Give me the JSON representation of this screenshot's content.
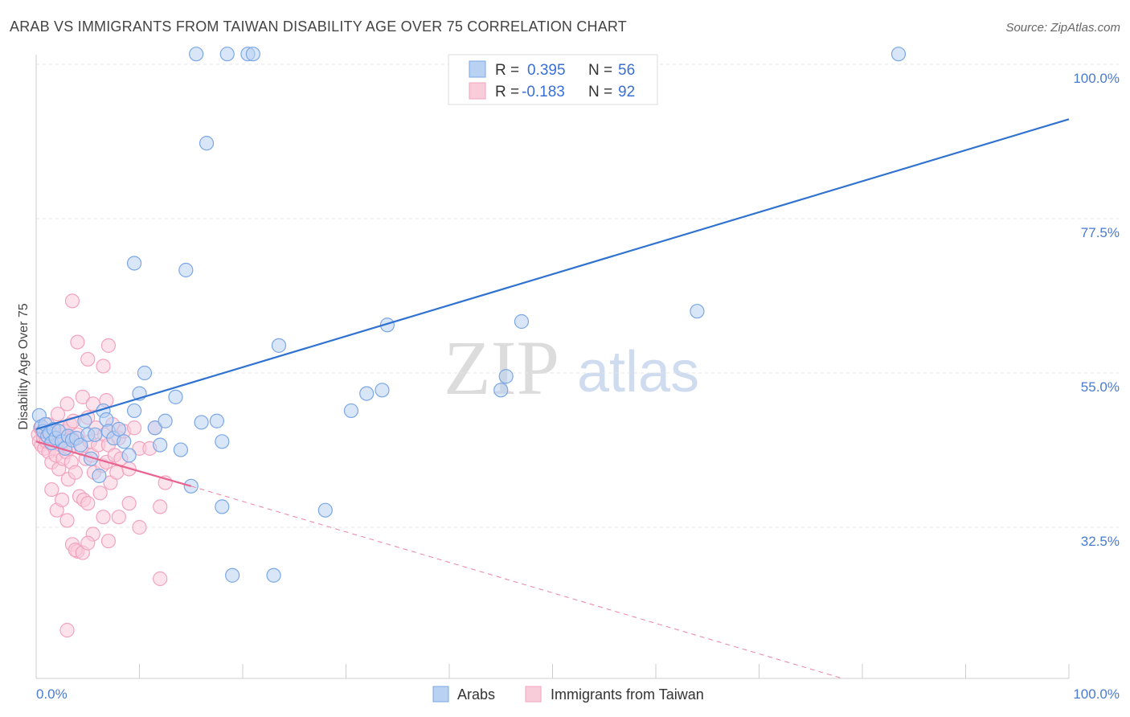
{
  "chart_data": {
    "type": "scatter",
    "title": "ARAB VS IMMIGRANTS FROM TAIWAN DISABILITY AGE OVER 75 CORRELATION CHART",
    "source": "Source: ZipAtlas.com",
    "ylabel": "Disability Age Over 75",
    "xlim": [
      0,
      100
    ],
    "ylim": [
      10,
      102
    ],
    "x_tick_labels": [
      "0.0%",
      "100.0%"
    ],
    "y_ticks": [
      {
        "value": 100,
        "label": "100.0%"
      },
      {
        "value": 77.5,
        "label": "77.5%"
      },
      {
        "value": 55,
        "label": "55.0%"
      },
      {
        "value": 32.5,
        "label": "32.5%"
      }
    ],
    "watermark": {
      "zip": "ZIP",
      "atlas": "atlas"
    },
    "legend": [
      {
        "r_label": "R =",
        "r_value": "0.395",
        "n_label": "N =",
        "n_value": "56"
      },
      {
        "r_label": "R =",
        "r_value": "-0.183",
        "n_label": "N =",
        "n_value": "92"
      }
    ],
    "series": [
      {
        "name": "Arabs",
        "color": "#7aa7e6",
        "fill": "#b9d1f3",
        "line_color": "#2f72d0",
        "trend": {
          "x0": 0,
          "y0": 46.8,
          "x1": 100,
          "y1": 92.0
        },
        "points": [
          [
            0.3,
            48.8
          ],
          [
            0.5,
            47.2
          ],
          [
            0.7,
            46.5
          ],
          [
            0.9,
            47.5
          ],
          [
            1.1,
            45.8
          ],
          [
            1.3,
            46.2
          ],
          [
            1.5,
            44.8
          ],
          [
            1.7,
            46.8
          ],
          [
            1.9,
            45.5
          ],
          [
            2.2,
            46.5
          ],
          [
            2.5,
            45.0
          ],
          [
            2.8,
            44.0
          ],
          [
            3.1,
            45.8
          ],
          [
            3.5,
            45.2
          ],
          [
            3.9,
            45.5
          ],
          [
            4.3,
            44.5
          ],
          [
            4.7,
            48.0
          ],
          [
            5.0,
            46.0
          ],
          [
            5.3,
            42.5
          ],
          [
            5.7,
            46.0
          ],
          [
            6.1,
            40.0
          ],
          [
            6.5,
            49.5
          ],
          [
            6.8,
            48.2
          ],
          [
            7.0,
            46.5
          ],
          [
            7.5,
            45.5
          ],
          [
            8.0,
            46.8
          ],
          [
            8.5,
            45.0
          ],
          [
            9.0,
            43.0
          ],
          [
            9.5,
            49.5
          ],
          [
            10.0,
            52.0
          ],
          [
            10.5,
            55.0
          ],
          [
            11.5,
            47.0
          ],
          [
            12.0,
            44.5
          ],
          [
            12.5,
            48.0
          ],
          [
            13.5,
            51.5
          ],
          [
            14.0,
            43.8
          ],
          [
            15.0,
            38.5
          ],
          [
            16.0,
            47.8
          ],
          [
            17.5,
            48.0
          ],
          [
            18.0,
            45.0
          ],
          [
            9.5,
            71.0
          ],
          [
            14.5,
            70.0
          ],
          [
            16.5,
            88.5
          ],
          [
            18.0,
            35.5
          ],
          [
            19.0,
            25.5
          ],
          [
            23.0,
            25.5
          ],
          [
            23.5,
            59.0
          ],
          [
            28.0,
            35.0
          ],
          [
            30.5,
            49.5
          ],
          [
            32.0,
            52.0
          ],
          [
            33.5,
            52.5
          ],
          [
            34.0,
            62.0
          ],
          [
            45.0,
            52.5
          ],
          [
            45.5,
            54.5
          ],
          [
            47.0,
            62.5
          ],
          [
            64.0,
            64.0
          ]
        ],
        "top_points": [
          [
            15.5,
            101.5
          ],
          [
            18.5,
            101.5
          ],
          [
            20.5,
            101.5
          ],
          [
            21.0,
            101.5
          ],
          [
            83.5,
            101.5
          ]
        ]
      },
      {
        "name": "Immigrants from Taiwan",
        "color": "#f2a3bd",
        "fill": "#f9ccda",
        "line_color": "#e8638e",
        "trend": {
          "x0": 0,
          "y0": 45.0,
          "x1": 15,
          "y1": 38.5,
          "dash_x1": 78,
          "dash_y1": 10.5
        },
        "points": [
          [
            0.2,
            46.0
          ],
          [
            0.3,
            45.0
          ],
          [
            0.4,
            47.0
          ],
          [
            0.5,
            44.5
          ],
          [
            0.6,
            46.5
          ],
          [
            0.7,
            45.5
          ],
          [
            0.8,
            44.0
          ],
          [
            0.9,
            46.0
          ],
          [
            1.0,
            45.0
          ],
          [
            1.1,
            47.5
          ],
          [
            1.2,
            43.5
          ],
          [
            1.3,
            46.5
          ],
          [
            1.4,
            44.8
          ],
          [
            1.5,
            42.0
          ],
          [
            1.6,
            45.5
          ],
          [
            1.7,
            46.8
          ],
          [
            1.8,
            44.0
          ],
          [
            1.9,
            43.0
          ],
          [
            2.0,
            45.8
          ],
          [
            2.1,
            49.0
          ],
          [
            2.2,
            41.0
          ],
          [
            2.3,
            46.0
          ],
          [
            2.4,
            44.5
          ],
          [
            2.5,
            47.0
          ],
          [
            2.6,
            42.5
          ],
          [
            2.7,
            45.0
          ],
          [
            2.8,
            46.5
          ],
          [
            2.9,
            43.5
          ],
          [
            3.0,
            50.5
          ],
          [
            3.1,
            39.5
          ],
          [
            3.2,
            44.0
          ],
          [
            3.3,
            47.5
          ],
          [
            3.4,
            42.0
          ],
          [
            3.5,
            45.5
          ],
          [
            3.6,
            48.0
          ],
          [
            3.8,
            40.5
          ],
          [
            4.0,
            46.0
          ],
          [
            4.2,
            37.0
          ],
          [
            4.4,
            44.0
          ],
          [
            4.6,
            36.5
          ],
          [
            4.8,
            42.5
          ],
          [
            5.0,
            48.5
          ],
          [
            5.2,
            45.0
          ],
          [
            5.4,
            43.0
          ],
          [
            5.6,
            40.5
          ],
          [
            5.8,
            47.0
          ],
          [
            6.0,
            44.5
          ],
          [
            6.2,
            37.5
          ],
          [
            6.4,
            41.5
          ],
          [
            6.6,
            46.0
          ],
          [
            6.8,
            42.0
          ],
          [
            7.0,
            44.5
          ],
          [
            7.2,
            39.0
          ],
          [
            7.4,
            47.5
          ],
          [
            7.6,
            43.0
          ],
          [
            7.8,
            40.5
          ],
          [
            8.0,
            45.5
          ],
          [
            8.2,
            42.5
          ],
          [
            8.5,
            46.5
          ],
          [
            9.0,
            41.0
          ],
          [
            9.5,
            47.0
          ],
          [
            10.0,
            44.0
          ],
          [
            1.5,
            38.0
          ],
          [
            2.0,
            35.0
          ],
          [
            2.5,
            36.5
          ],
          [
            3.0,
            33.5
          ],
          [
            3.5,
            30.0
          ],
          [
            4.0,
            29.0
          ],
          [
            5.0,
            36.0
          ],
          [
            5.5,
            31.5
          ],
          [
            6.5,
            34.0
          ],
          [
            7.0,
            30.5
          ],
          [
            8.0,
            34.0
          ],
          [
            9.0,
            36.0
          ],
          [
            10.0,
            32.5
          ],
          [
            12.0,
            35.5
          ],
          [
            12.5,
            39.0
          ],
          [
            12.0,
            25.0
          ],
          [
            3.0,
            17.5
          ],
          [
            3.5,
            65.5
          ],
          [
            4.0,
            59.5
          ],
          [
            5.0,
            57.0
          ],
          [
            6.5,
            56.0
          ],
          [
            7.0,
            59.0
          ],
          [
            4.5,
            51.5
          ],
          [
            5.5,
            50.5
          ],
          [
            6.8,
            51.0
          ],
          [
            3.8,
            29.2
          ],
          [
            4.5,
            28.8
          ],
          [
            5.0,
            30.2
          ],
          [
            11.0,
            44.0
          ],
          [
            11.5,
            47.0
          ]
        ]
      }
    ]
  },
  "bottom_legend": [
    {
      "label": "Arabs"
    },
    {
      "label": "Immigrants from Taiwan"
    }
  ]
}
